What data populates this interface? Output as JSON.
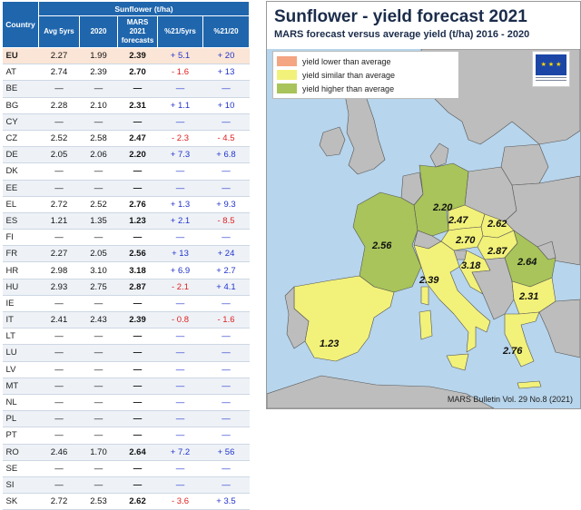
{
  "table": {
    "group_header": "Sunflower (t/ha)",
    "col_country": "Country",
    "columns": [
      "Avg 5yrs",
      "2020",
      "MARS 2021 forecasts",
      "%21/5yrs",
      "%21/20"
    ],
    "rows": [
      {
        "country": "EU",
        "avg": "2.27",
        "y2020": "1.99",
        "forecast": "2.39",
        "p5": "+ 5.1",
        "p20": "+ 20"
      },
      {
        "country": "AT",
        "avg": "2.74",
        "y2020": "2.39",
        "forecast": "2.70",
        "p5": "- 1.6",
        "p20": "+ 13"
      },
      {
        "country": "BE",
        "avg": "—",
        "y2020": "—",
        "forecast": "—",
        "p5": "—",
        "p20": "—"
      },
      {
        "country": "BG",
        "avg": "2.28",
        "y2020": "2.10",
        "forecast": "2.31",
        "p5": "+ 1.1",
        "p20": "+ 10"
      },
      {
        "country": "CY",
        "avg": "—",
        "y2020": "—",
        "forecast": "—",
        "p5": "—",
        "p20": "—"
      },
      {
        "country": "CZ",
        "avg": "2.52",
        "y2020": "2.58",
        "forecast": "2.47",
        "p5": "- 2.3",
        "p20": "- 4.5"
      },
      {
        "country": "DE",
        "avg": "2.05",
        "y2020": "2.06",
        "forecast": "2.20",
        "p5": "+ 7.3",
        "p20": "+ 6.8"
      },
      {
        "country": "DK",
        "avg": "—",
        "y2020": "—",
        "forecast": "—",
        "p5": "—",
        "p20": "—"
      },
      {
        "country": "EE",
        "avg": "—",
        "y2020": "—",
        "forecast": "—",
        "p5": "—",
        "p20": "—"
      },
      {
        "country": "EL",
        "avg": "2.72",
        "y2020": "2.52",
        "forecast": "2.76",
        "p5": "+ 1.3",
        "p20": "+ 9.3"
      },
      {
        "country": "ES",
        "avg": "1.21",
        "y2020": "1.35",
        "forecast": "1.23",
        "p5": "+ 2.1",
        "p20": "- 8.5"
      },
      {
        "country": "FI",
        "avg": "—",
        "y2020": "—",
        "forecast": "—",
        "p5": "—",
        "p20": "—"
      },
      {
        "country": "FR",
        "avg": "2.27",
        "y2020": "2.05",
        "forecast": "2.56",
        "p5": "+ 13",
        "p20": "+ 24"
      },
      {
        "country": "HR",
        "avg": "2.98",
        "y2020": "3.10",
        "forecast": "3.18",
        "p5": "+ 6.9",
        "p20": "+ 2.7"
      },
      {
        "country": "HU",
        "avg": "2.93",
        "y2020": "2.75",
        "forecast": "2.87",
        "p5": "- 2.1",
        "p20": "+ 4.1"
      },
      {
        "country": "IE",
        "avg": "—",
        "y2020": "—",
        "forecast": "—",
        "p5": "—",
        "p20": "—"
      },
      {
        "country": "IT",
        "avg": "2.41",
        "y2020": "2.43",
        "forecast": "2.39",
        "p5": "- 0.8",
        "p20": "- 1.6"
      },
      {
        "country": "LT",
        "avg": "—",
        "y2020": "—",
        "forecast": "—",
        "p5": "—",
        "p20": "—"
      },
      {
        "country": "LU",
        "avg": "—",
        "y2020": "—",
        "forecast": "—",
        "p5": "—",
        "p20": "—"
      },
      {
        "country": "LV",
        "avg": "—",
        "y2020": "—",
        "forecast": "—",
        "p5": "—",
        "p20": "—"
      },
      {
        "country": "MT",
        "avg": "—",
        "y2020": "—",
        "forecast": "—",
        "p5": "—",
        "p20": "—"
      },
      {
        "country": "NL",
        "avg": "—",
        "y2020": "—",
        "forecast": "—",
        "p5": "—",
        "p20": "—"
      },
      {
        "country": "PL",
        "avg": "—",
        "y2020": "—",
        "forecast": "—",
        "p5": "—",
        "p20": "—"
      },
      {
        "country": "PT",
        "avg": "—",
        "y2020": "—",
        "forecast": "—",
        "p5": "—",
        "p20": "—"
      },
      {
        "country": "RO",
        "avg": "2.46",
        "y2020": "1.70",
        "forecast": "2.64",
        "p5": "+ 7.2",
        "p20": "+ 56"
      },
      {
        "country": "SE",
        "avg": "—",
        "y2020": "—",
        "forecast": "—",
        "p5": "—",
        "p20": "—"
      },
      {
        "country": "SI",
        "avg": "—",
        "y2020": "—",
        "forecast": "—",
        "p5": "—",
        "p20": "—"
      },
      {
        "country": "SK",
        "avg": "2.72",
        "y2020": "2.53",
        "forecast": "2.62",
        "p5": "- 3.6",
        "p20": "+ 3.5"
      }
    ]
  },
  "map": {
    "title": "Sunflower - yield forecast 2021",
    "subtitle": "MARS forecast versus average yield (t/ha) 2016 - 2020",
    "legend": [
      {
        "label": "yield lower than average",
        "color": "#f4a582"
      },
      {
        "label": "yield similar than average",
        "color": "#f2f17a"
      },
      {
        "label": "yield higher than average",
        "color": "#a8c45a"
      }
    ],
    "footer": "MARS Bulletin Vol. 29 No.8 (2021)",
    "labels": {
      "DE": "2.20",
      "FR": "2.56",
      "ES": "1.23",
      "CZ": "2.47",
      "SK": "2.62",
      "AT": "2.70",
      "HU": "2.87",
      "RO": "2.64",
      "HR": "3.18",
      "IT": "2.39",
      "BG": "2.31",
      "EL": "2.76"
    },
    "colors": {
      "sea": "#b7d5ec",
      "nodata": "#bdbdbd",
      "border": "#555555",
      "eu_blue": "#1c46a6",
      "eu_star": "#ffd700"
    },
    "flag_icon": "eu-flag-icon"
  }
}
